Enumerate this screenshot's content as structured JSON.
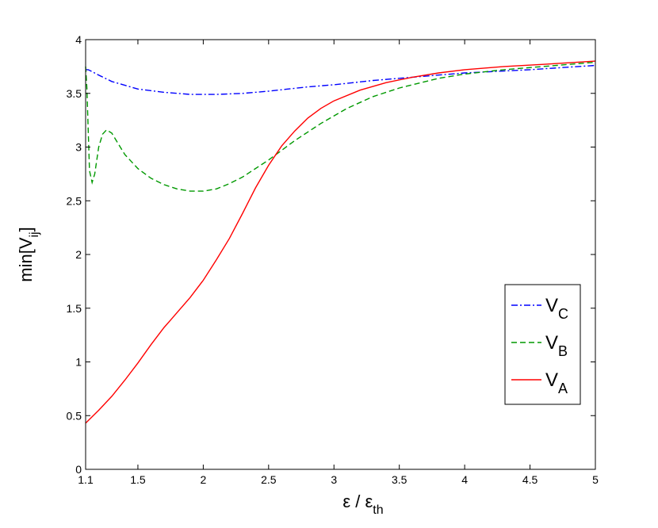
{
  "chart_data": {
    "type": "line",
    "title": "",
    "xlabel": {
      "main": "ε / ε",
      "sub": "th"
    },
    "ylabel": {
      "main": "min[V",
      "sub": "ij",
      "close": "]"
    },
    "xlim": [
      1.1,
      5
    ],
    "ylim": [
      0,
      4
    ],
    "xticks": [
      1.1,
      1.5,
      2,
      2.5,
      3,
      3.5,
      4,
      4.5,
      5
    ],
    "xtick_labels": [
      "1.1",
      "1.5",
      "2",
      "2.5",
      "3",
      "3.5",
      "4",
      "4.5",
      "5"
    ],
    "yticks": [
      0,
      0.5,
      1,
      1.5,
      2,
      2.5,
      3,
      3.5,
      4
    ],
    "ytick_labels": [
      "0",
      "0.5",
      "1",
      "1.5",
      "2",
      "2.5",
      "3",
      "3.5",
      "4"
    ],
    "grid": false,
    "legend_position": "bottom-right",
    "series": [
      {
        "name": "V_C",
        "legend_main": "V",
        "legend_sub": "C",
        "color": "#0000ff",
        "dash": "8,3,2,3",
        "x": [
          1.1,
          1.12,
          1.2,
          1.3,
          1.5,
          1.7,
          1.9,
          2.1,
          2.3,
          2.5,
          2.8,
          3.0,
          3.3,
          3.6,
          4.0,
          4.5,
          5.0
        ],
        "y": [
          3.72,
          3.72,
          3.67,
          3.61,
          3.54,
          3.51,
          3.49,
          3.49,
          3.5,
          3.52,
          3.56,
          3.58,
          3.62,
          3.65,
          3.69,
          3.72,
          3.76
        ]
      },
      {
        "name": "V_B",
        "legend_main": "V",
        "legend_sub": "B",
        "color": "#009900",
        "dash": "7,4",
        "x": [
          1.1,
          1.11,
          1.12,
          1.13,
          1.15,
          1.17,
          1.2,
          1.23,
          1.26,
          1.3,
          1.35,
          1.4,
          1.5,
          1.6,
          1.7,
          1.8,
          1.9,
          2.0,
          2.1,
          2.2,
          2.3,
          2.5,
          2.7,
          2.9,
          3.1,
          3.3,
          3.5,
          3.8,
          4.0,
          4.3,
          4.6,
          5.0
        ],
        "y": [
          3.75,
          3.55,
          3.15,
          2.78,
          2.67,
          2.75,
          3.0,
          3.12,
          3.16,
          3.13,
          3.03,
          2.93,
          2.8,
          2.71,
          2.65,
          2.61,
          2.59,
          2.59,
          2.61,
          2.66,
          2.72,
          2.88,
          3.06,
          3.22,
          3.36,
          3.47,
          3.55,
          3.64,
          3.68,
          3.72,
          3.75,
          3.79
        ]
      },
      {
        "name": "V_A",
        "legend_main": "V",
        "legend_sub": "A",
        "color": "#ff0000",
        "dash": "",
        "x": [
          1.1,
          1.2,
          1.3,
          1.4,
          1.5,
          1.6,
          1.7,
          1.75,
          1.8,
          1.9,
          2.0,
          2.1,
          2.2,
          2.3,
          2.4,
          2.5,
          2.6,
          2.7,
          2.8,
          2.9,
          3.0,
          3.2,
          3.4,
          3.6,
          3.8,
          4.0,
          4.3,
          4.6,
          5.0
        ],
        "y": [
          0.43,
          0.55,
          0.68,
          0.83,
          0.99,
          1.16,
          1.32,
          1.39,
          1.46,
          1.6,
          1.76,
          1.95,
          2.15,
          2.38,
          2.62,
          2.83,
          3.01,
          3.15,
          3.27,
          3.36,
          3.43,
          3.53,
          3.6,
          3.65,
          3.69,
          3.72,
          3.75,
          3.77,
          3.8
        ]
      }
    ]
  }
}
